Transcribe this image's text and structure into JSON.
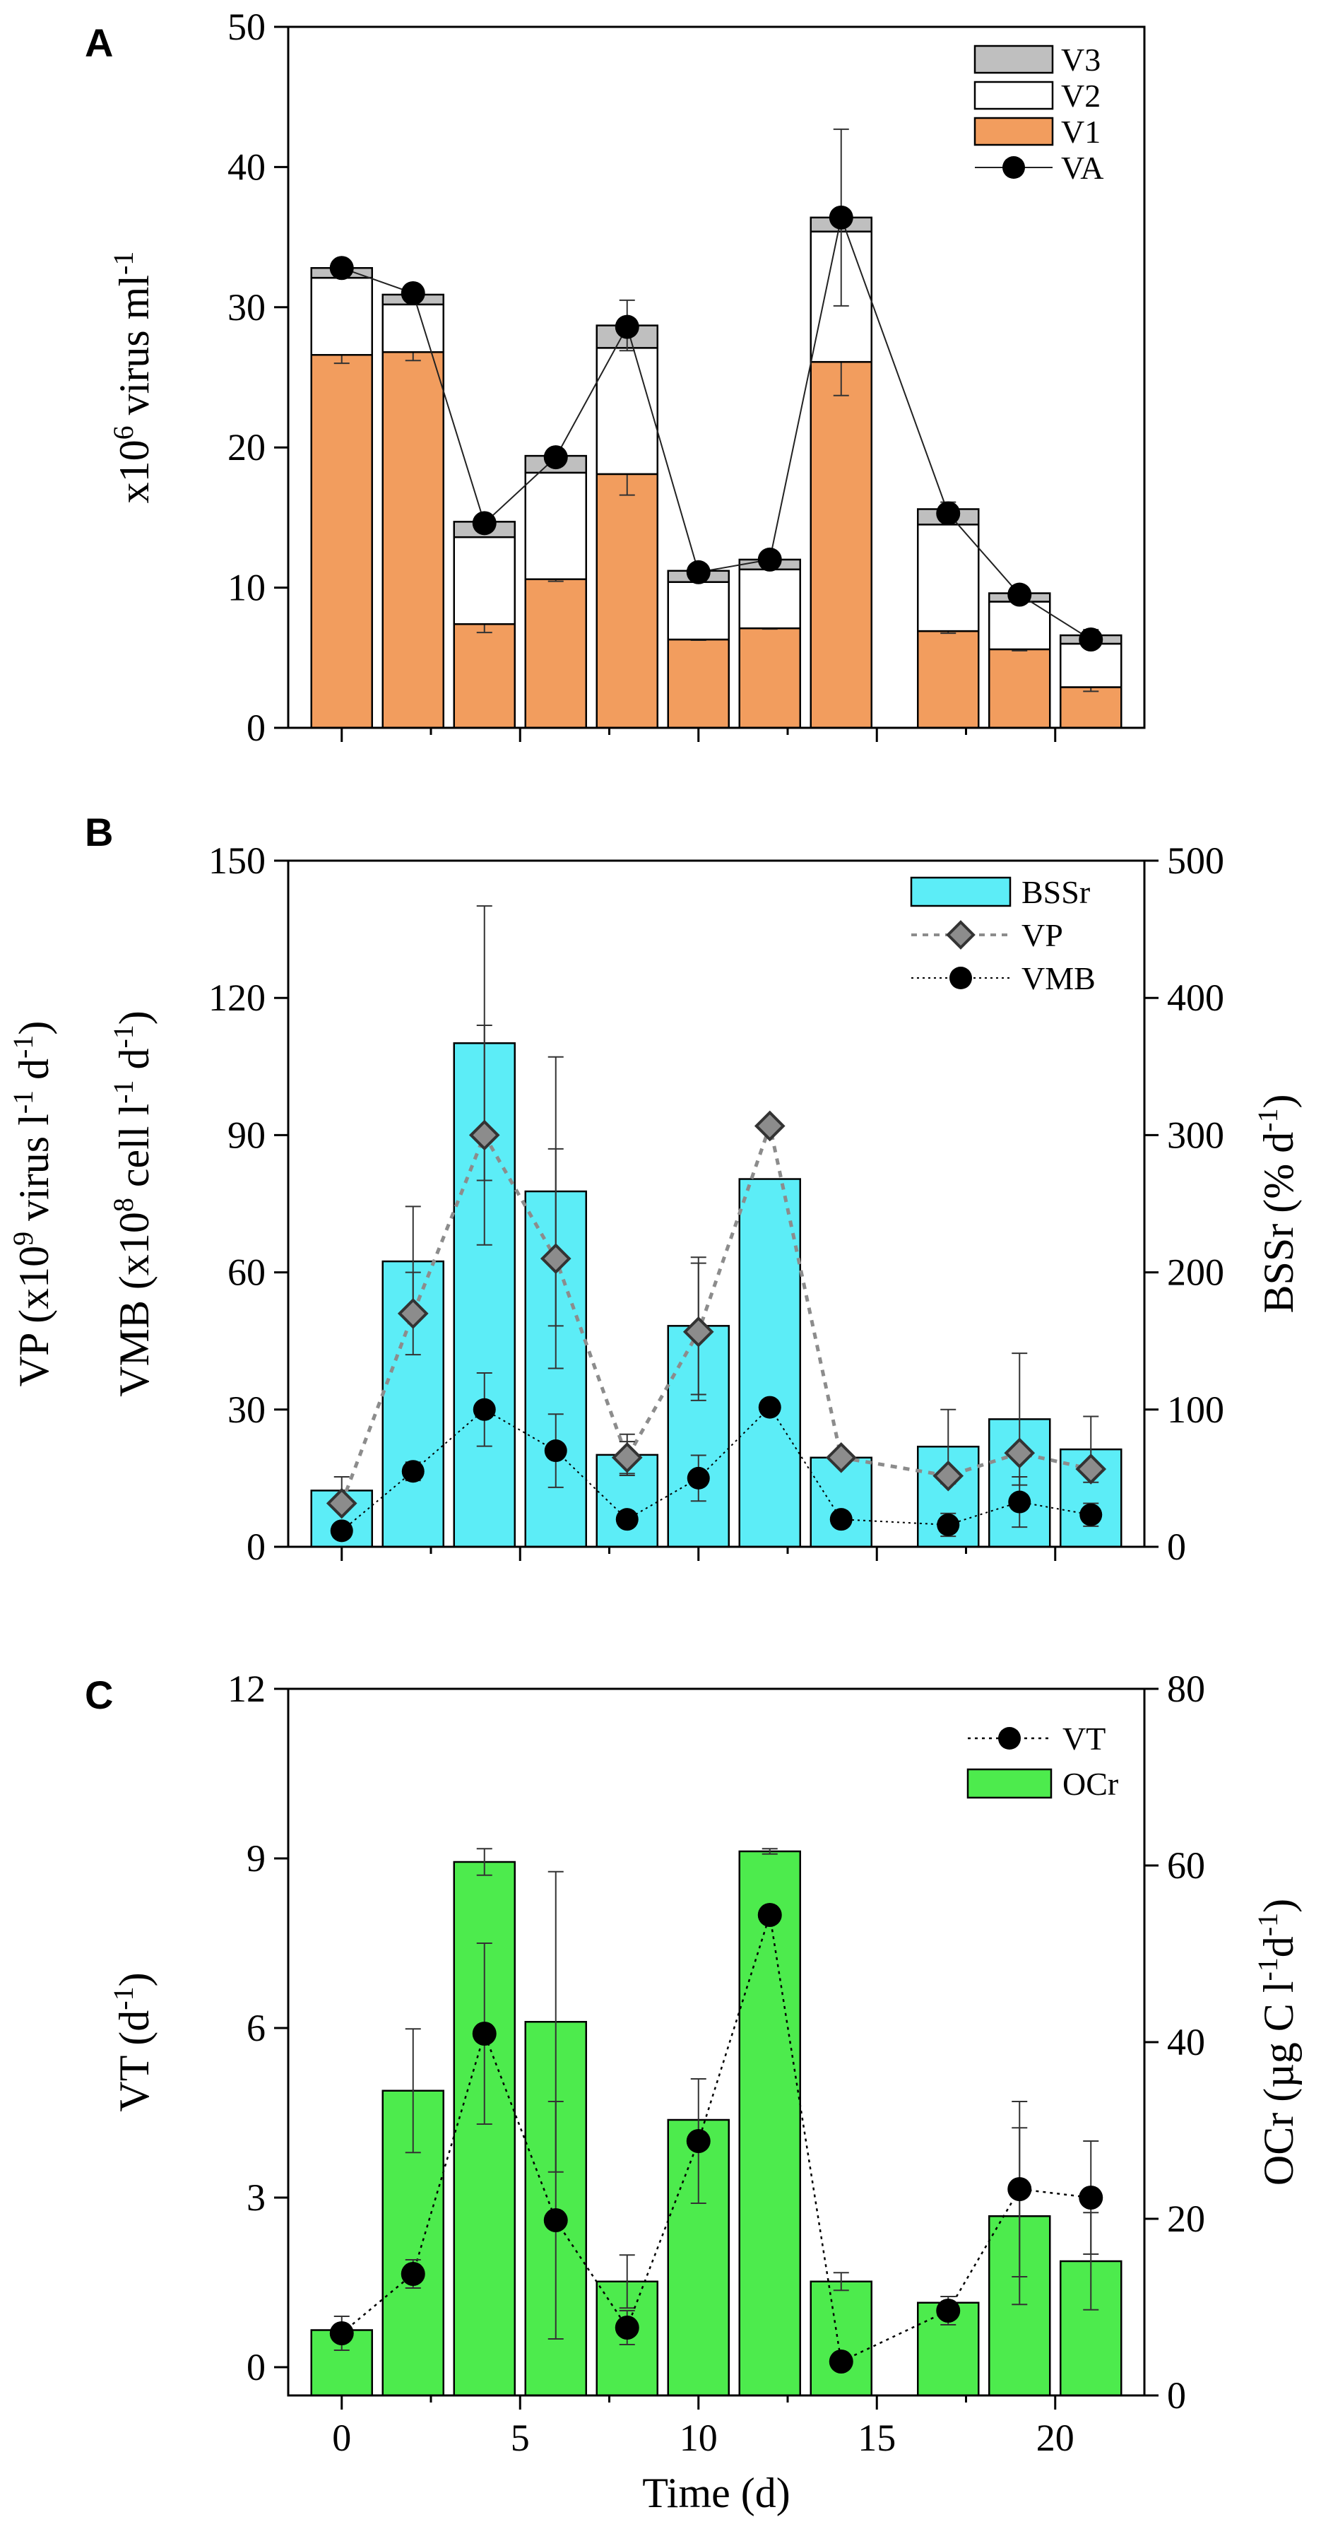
{
  "chart_data": [
    {
      "panel": "A",
      "type": "bar",
      "stacked": true,
      "x": [
        0,
        2,
        4,
        6,
        8,
        10,
        12,
        14,
        17,
        19,
        21
      ],
      "xlim": [
        -1.5,
        22.5
      ],
      "xticks": [
        0,
        5,
        10,
        15,
        20
      ],
      "ylim": [
        0,
        50
      ],
      "yticks": [
        0,
        10,
        20,
        30,
        40,
        50
      ],
      "ylabel": {
        "base": "x10",
        "sup": "6",
        "rest": " virus ml",
        "sup2": "-1"
      },
      "legend": [
        "V3",
        "V2",
        "V1",
        "VA"
      ],
      "legend_position": "top-right",
      "series": [
        {
          "name": "V1",
          "color": "#F29D5E",
          "values": [
            26.6,
            26.8,
            7.4,
            10.6,
            18.1,
            6.3,
            7.1,
            26.1,
            6.9,
            5.6,
            2.9
          ],
          "errors": [
            0.6,
            0.6,
            0.6,
            0.15,
            1.5,
            0.05,
            0.05,
            2.4,
            0.15,
            0.1,
            0.3
          ]
        },
        {
          "name": "V2",
          "color": "#FFFFFF",
          "values": [
            5.5,
            3.4,
            6.2,
            7.6,
            9.0,
            4.1,
            4.2,
            9.3,
            7.6,
            3.4,
            3.1
          ]
        },
        {
          "name": "V3",
          "color": "#BFBFBF",
          "values": [
            0.7,
            0.7,
            1.1,
            1.2,
            1.6,
            0.8,
            0.7,
            1.0,
            1.1,
            0.6,
            0.6
          ],
          "errors": [
            0.3,
            0.4,
            0.3,
            0.3,
            1.8,
            0.3,
            0.4,
            6.3,
            0.5,
            0.3,
            0.4
          ]
        },
        {
          "name": "VA",
          "color": "#000000",
          "type": "line",
          "values": [
            32.8,
            31.0,
            14.6,
            19.3,
            28.6,
            11.1,
            12.0,
            36.4,
            15.3,
            9.5,
            6.3
          ]
        }
      ]
    },
    {
      "panel": "B",
      "type": "bar",
      "x": [
        0,
        2,
        4,
        6,
        8,
        10,
        12,
        14,
        17,
        19,
        21
      ],
      "xlim": [
        -1.5,
        22.5
      ],
      "xticks": [
        0,
        5,
        10,
        15,
        20
      ],
      "ylim": [
        0,
        150
      ],
      "yticks": [
        0,
        30,
        60,
        90,
        120,
        150
      ],
      "y2lim": [
        0,
        500
      ],
      "y2ticks": [
        0,
        100,
        200,
        300,
        400,
        500
      ],
      "ylabel_line1": {
        "base": "VP (x10",
        "sup": "9",
        "mid": " virus l",
        "sup2": "-1",
        "mid2": " d",
        "sup3": "-1",
        "end": ")"
      },
      "ylabel_line2": {
        "base": "VMB (x10",
        "sup": "8",
        "mid": " cell l",
        "sup2": "-1",
        "mid2": " d",
        "sup3": "-1",
        "end": ")"
      },
      "y2label": {
        "base": "BSSr (% d",
        "sup": "-1",
        "end": ")"
      },
      "legend": [
        "BSSr",
        "VP",
        "VMB"
      ],
      "legend_position": "top-right",
      "series": [
        {
          "name": "BSSr",
          "axis": "right",
          "color": "#5CEDF7",
          "values": [
            41,
            208,
            367,
            259,
            67,
            161,
            268,
            65,
            73,
            93,
            71
          ],
          "errors": [
            10,
            40,
            100,
            98,
            15,
            50,
            0,
            0,
            27,
            48,
            24
          ]
        },
        {
          "name": "VP",
          "axis": "left",
          "color": "#8C8C8C",
          "type": "line",
          "values": [
            9.5,
            51,
            90,
            63,
            19.5,
            47,
            92,
            19.5,
            15.5,
            20.5,
            17
          ],
          "errors": [
            0,
            9,
            24,
            24,
            3.5,
            15,
            0,
            0,
            0,
            0,
            0
          ]
        },
        {
          "name": "VMB",
          "axis": "left",
          "color": "#000000",
          "type": "line",
          "values": [
            3.5,
            16.5,
            30,
            21,
            6,
            15,
            30.5,
            6,
            4.8,
            9.8,
            7
          ],
          "errors": [
            0,
            2,
            8,
            8,
            0,
            5,
            0,
            0,
            2.5,
            5.5,
            2.5
          ]
        }
      ]
    },
    {
      "panel": "C",
      "type": "bar",
      "x": [
        0,
        2,
        4,
        6,
        8,
        10,
        12,
        14,
        17,
        19,
        21
      ],
      "xlim": [
        -1.5,
        22.5
      ],
      "xticks": [
        0,
        5,
        10,
        15,
        20
      ],
      "xlabel": "Time (d)",
      "ylim": [
        -0.5,
        12
      ],
      "yticks": [
        0,
        3,
        6,
        9,
        12
      ],
      "y2lim": [
        0,
        80
      ],
      "y2ticks": [
        0,
        20,
        40,
        60,
        80
      ],
      "ylabel": {
        "base": "VT (d",
        "sup": "-1",
        "end": ")"
      },
      "y2label": {
        "base": "OCr (µg C l",
        "sup": "-1",
        "mid": "d",
        "sup2": "-1",
        "end": ")"
      },
      "legend": [
        "VT",
        "OCr"
      ],
      "legend_position": "top-right",
      "series": [
        {
          "name": "OCr",
          "axis": "right",
          "color": "#4DEB4D",
          "values": [
            7.4,
            34.5,
            60.4,
            42.3,
            12.9,
            31.2,
            61.6,
            12.9,
            10.5,
            20.3,
            15.2
          ],
          "errors": [
            0,
            7,
            1.5,
            17,
            3,
            0,
            0.3,
            1,
            0,
            10,
            5.5
          ]
        },
        {
          "name": "VT",
          "axis": "left",
          "color": "#000000",
          "type": "line",
          "values": [
            0.6,
            1.65,
            5.9,
            2.6,
            0.7,
            4.0,
            8.0,
            0.1,
            1.0,
            3.15,
            3.0
          ],
          "errors": [
            0.3,
            0.25,
            1.6,
            2.1,
            0.3,
            1.1,
            0,
            0,
            0.25,
            1.55,
            1.0
          ]
        }
      ]
    }
  ]
}
